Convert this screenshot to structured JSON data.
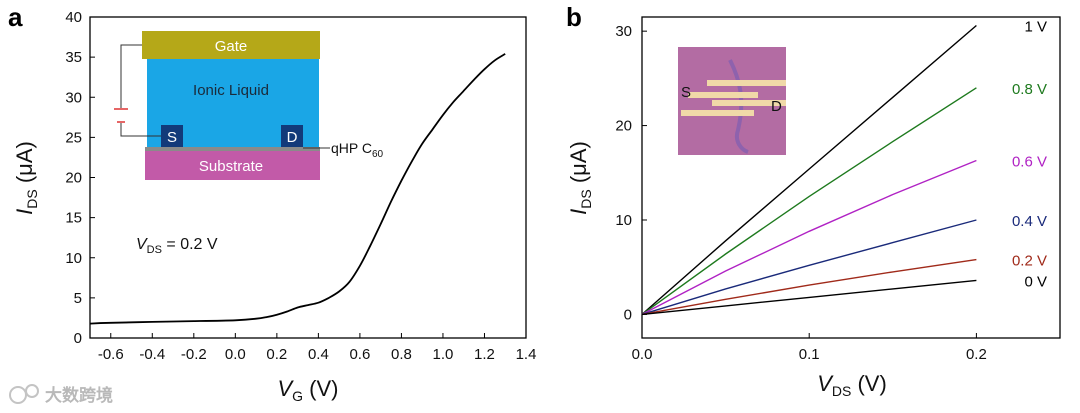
{
  "chart_data": [
    {
      "panel": "a",
      "type": "line",
      "xlabel": {
        "main": "V",
        "sub": "G",
        "unit": " (V)"
      },
      "ylabel": {
        "main": "I",
        "sub": "DS",
        "unit": " (μA)"
      },
      "xlim": [
        -0.7,
        1.4
      ],
      "ylim": [
        0,
        40
      ],
      "xticks": [
        -0.6,
        -0.4,
        -0.2,
        0.0,
        0.2,
        0.4,
        0.6,
        0.8,
        1.0,
        1.2,
        1.4
      ],
      "xtick_labels": [
        "-0.6",
        "-0.4",
        "-0.2",
        "0.0",
        "0.2",
        "0.4",
        "0.6",
        "0.8",
        "1.0",
        "1.2",
        "1.4"
      ],
      "yticks": [
        0,
        5,
        10,
        15,
        20,
        25,
        30,
        35,
        40
      ],
      "ytick_labels": [
        "0",
        "5",
        "10",
        "15",
        "20",
        "25",
        "30",
        "35",
        "40"
      ],
      "annotation": {
        "main": "V",
        "sub": "DS",
        "rest": " = 0.2 V"
      },
      "series": [
        {
          "name": "transfer",
          "color": "#000000",
          "x": [
            -0.7,
            -0.6,
            -0.4,
            -0.2,
            0.0,
            0.1,
            0.15,
            0.2,
            0.25,
            0.3,
            0.35,
            0.4,
            0.45,
            0.5,
            0.55,
            0.6,
            0.65,
            0.7,
            0.75,
            0.8,
            0.85,
            0.9,
            0.95,
            1.0,
            1.05,
            1.1,
            1.15,
            1.2,
            1.25,
            1.3
          ],
          "y": [
            1.8,
            1.9,
            2.0,
            2.1,
            2.2,
            2.4,
            2.6,
            2.9,
            3.3,
            3.8,
            4.1,
            4.4,
            5.0,
            5.8,
            7.0,
            9.0,
            11.5,
            14.2,
            17.0,
            19.6,
            22.0,
            24.2,
            26.0,
            27.8,
            29.4,
            30.8,
            32.2,
            33.5,
            34.6,
            35.4
          ]
        }
      ],
      "inset": {
        "gate": "Gate",
        "ionic": "Ionic Liquid",
        "source": "S",
        "drain": "D",
        "substrate": "Substrate",
        "film": {
          "main": "qHP C",
          "sub": "60"
        }
      }
    },
    {
      "panel": "b",
      "type": "line",
      "xlabel": {
        "main": "V",
        "sub": "DS",
        "unit": " (V)"
      },
      "ylabel": {
        "main": "I",
        "sub": "DS",
        "unit": " (μA)"
      },
      "xlim": [
        0,
        0.25
      ],
      "ylim": [
        -2.5,
        31.5
      ],
      "xticks": [
        0.0,
        0.1,
        0.2
      ],
      "xtick_labels": [
        "0.0",
        "0.1",
        "0.2"
      ],
      "yticks": [
        0,
        10,
        20,
        30
      ],
      "ytick_labels": [
        "0",
        "10",
        "20",
        "30"
      ],
      "series": [
        {
          "name": "1 V",
          "color": "#000000",
          "x": [
            0,
            0.05,
            0.1,
            0.15,
            0.2
          ],
          "y": [
            0,
            7.8,
            15.4,
            23.0,
            30.6
          ]
        },
        {
          "name": "0.8 V",
          "color": "#1e7a1e",
          "x": [
            0,
            0.05,
            0.1,
            0.15,
            0.2
          ],
          "y": [
            0,
            6.4,
            12.5,
            18.3,
            24.0
          ]
        },
        {
          "name": "0.6 V",
          "color": "#b022c4",
          "x": [
            0,
            0.05,
            0.1,
            0.15,
            0.2
          ],
          "y": [
            0,
            4.6,
            8.8,
            12.7,
            16.3
          ]
        },
        {
          "name": "0.4 V",
          "color": "#1a2a7a",
          "x": [
            0,
            0.05,
            0.1,
            0.15,
            0.2
          ],
          "y": [
            0,
            2.7,
            5.2,
            7.6,
            10.0
          ]
        },
        {
          "name": "0.2 V",
          "color": "#a02a1a",
          "x": [
            0,
            0.05,
            0.1,
            0.15,
            0.2
          ],
          "y": [
            0,
            1.6,
            3.1,
            4.5,
            5.8
          ]
        },
        {
          "name": "0 V",
          "color": "#000000",
          "x": [
            0,
            0.05,
            0.1,
            0.15,
            0.2
          ],
          "y": [
            0,
            0.9,
            1.8,
            2.7,
            3.6
          ]
        }
      ],
      "inset": {
        "source": "S",
        "drain": "D"
      }
    }
  ],
  "watermark": "大数跨境"
}
